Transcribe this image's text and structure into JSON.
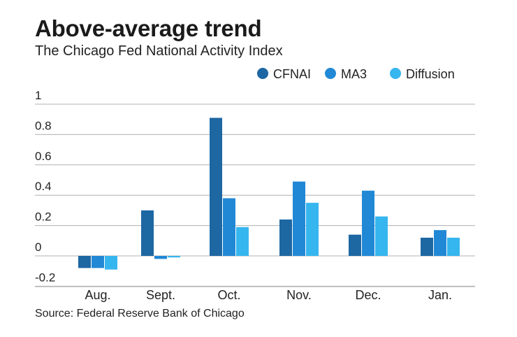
{
  "title": "Above-average trend",
  "subtitle": "The Chicago Fed National Activity Index",
  "source": "Source: Federal Reserve Bank of Chicago",
  "colors": {
    "CFNAI": "#1d67a3",
    "MA3": "#2188d6",
    "Diffusion": "#36b6ef",
    "grid": "#b0b0b0"
  },
  "chart_data": {
    "type": "bar",
    "categories": [
      "Aug.",
      "Sept.",
      "Oct.",
      "Nov.",
      "Dec.",
      "Jan."
    ],
    "series": [
      {
        "name": "CFNAI",
        "values": [
          -0.08,
          0.3,
          0.91,
          0.24,
          0.14,
          0.12
        ]
      },
      {
        "name": "MA3",
        "values": [
          -0.08,
          -0.02,
          0.38,
          0.49,
          0.43,
          0.17
        ]
      },
      {
        "name": "Diffusion",
        "values": [
          -0.09,
          -0.01,
          0.19,
          0.35,
          0.26,
          0.12
        ]
      }
    ],
    "yticks": [
      "1",
      "0.8",
      "0.6",
      "0.4",
      "0.2",
      "0",
      "-0.2"
    ],
    "ytick_values": [
      1,
      0.8,
      0.6,
      0.4,
      0.2,
      0,
      -0.2
    ],
    "ylim": [
      -0.2,
      1
    ],
    "grid": true,
    "legend_position": "top-right"
  }
}
